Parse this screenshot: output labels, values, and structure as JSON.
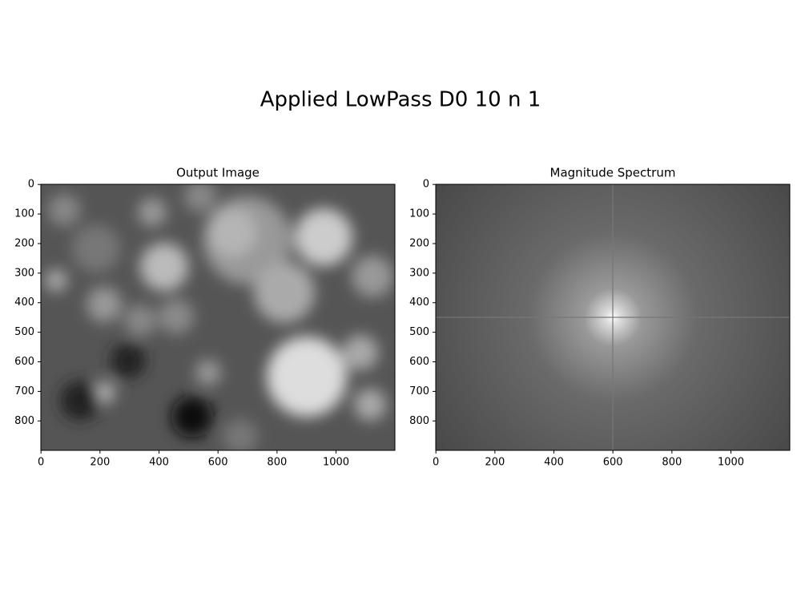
{
  "title": "Applied LowPass D0 10 n 1",
  "chart_data": [
    {
      "type": "image",
      "title": "Output Image",
      "xlim": [
        -0.5,
        1199.5
      ],
      "ylim": [
        899.5,
        -0.5
      ],
      "xticks": [
        0,
        200,
        400,
        600,
        800,
        1000
      ],
      "yticks": [
        0,
        100,
        200,
        300,
        400,
        500,
        600,
        700,
        800
      ]
    },
    {
      "type": "image",
      "title": "Magnitude Spectrum",
      "xlim": [
        -0.5,
        1199.5
      ],
      "ylim": [
        899.5,
        -0.5
      ],
      "xticks": [
        0,
        200,
        400,
        600,
        800,
        1000
      ],
      "yticks": [
        0,
        100,
        200,
        300,
        400,
        500,
        600,
        700,
        800
      ]
    }
  ]
}
